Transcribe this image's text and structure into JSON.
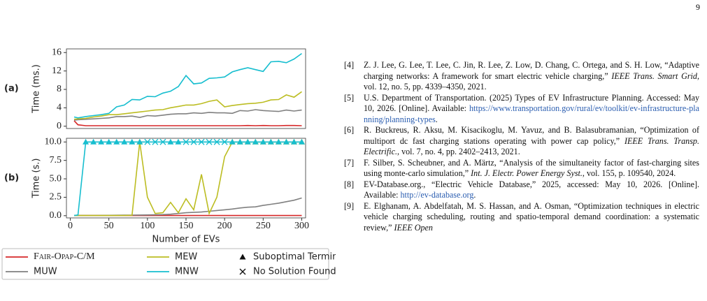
{
  "page_number": "9",
  "chart_data": [
    {
      "type": "line",
      "panel_label": "(a)",
      "ylabel": "Time (ms.)",
      "x": [
        5,
        10,
        20,
        30,
        40,
        50,
        60,
        70,
        80,
        90,
        100,
        110,
        120,
        130,
        140,
        150,
        160,
        170,
        180,
        190,
        200,
        210,
        220,
        230,
        240,
        250,
        260,
        270,
        280,
        290,
        300
      ],
      "xlim": [
        -5,
        305
      ],
      "ylim": [
        -0.5,
        16.8
      ],
      "yticks": [
        0,
        4,
        8,
        12,
        16
      ],
      "series": [
        {
          "name": "Fair-Opap-C/M",
          "color": "#d62728",
          "values": [
            1.2,
            0.3,
            0.1,
            0.1,
            0.1,
            0.1,
            0.1,
            0.1,
            0.1,
            0.1,
            0.1,
            0.1,
            0.1,
            0.1,
            0.1,
            0.1,
            0.1,
            0.1,
            0.1,
            0.1,
            0.1,
            0.1,
            0.1,
            0.15,
            0.1,
            0.15,
            0.1,
            0.1,
            0.15,
            0.15,
            0.1
          ]
        },
        {
          "name": "MUW",
          "color": "#808080",
          "values": [
            1.3,
            1.4,
            1.5,
            1.6,
            1.7,
            1.8,
            2.1,
            2.1,
            2.2,
            1.9,
            2.3,
            2.2,
            2.4,
            2.6,
            2.7,
            2.7,
            2.9,
            2.8,
            3.0,
            2.9,
            2.9,
            2.8,
            3.4,
            3.3,
            3.6,
            3.4,
            3.3,
            3.2,
            3.5,
            3.3,
            3.5
          ]
        },
        {
          "name": "MEW",
          "color": "#bcbd22",
          "values": [
            1.5,
            1.6,
            1.7,
            2.0,
            2.2,
            2.5,
            2.5,
            2.7,
            2.9,
            3.1,
            3.3,
            3.5,
            3.6,
            4.0,
            4.3,
            4.6,
            4.6,
            4.9,
            5.4,
            5.7,
            4.2,
            4.5,
            4.7,
            4.9,
            5.0,
            5.2,
            5.7,
            5.8,
            6.8,
            6.3,
            7.5
          ]
        },
        {
          "name": "MNW",
          "color": "#17becf",
          "values": [
            2.0,
            1.8,
            2.1,
            2.3,
            2.5,
            2.8,
            4.2,
            4.6,
            5.8,
            5.7,
            6.5,
            6.4,
            7.2,
            7.6,
            8.6,
            11.0,
            9.2,
            9.4,
            10.4,
            10.5,
            10.7,
            11.8,
            12.3,
            12.7,
            12.3,
            11.9,
            14.0,
            14.1,
            13.8,
            14.6,
            15.8
          ]
        }
      ]
    },
    {
      "type": "line",
      "panel_label": "(b)",
      "ylabel": "Time (s.)",
      "xlabel": "Number of EVs",
      "x": [
        5,
        10,
        20,
        30,
        40,
        50,
        60,
        70,
        80,
        90,
        100,
        110,
        120,
        130,
        140,
        150,
        160,
        170,
        180,
        190,
        200,
        210,
        220,
        230,
        240,
        250,
        260,
        270,
        280,
        290,
        300
      ],
      "xlim": [
        -5,
        305
      ],
      "xticks": [
        0,
        50,
        100,
        150,
        200,
        250,
        300
      ],
      "ylim": [
        -0.3,
        10.5
      ],
      "yticks": [
        {
          "value": 0,
          "label": "0.0"
        },
        2.5,
        {
          "value": 5,
          "label": "5.0"
        },
        7.5,
        {
          "value": 10,
          "label": "10.0"
        }
      ],
      "markers": [
        {
          "symbol": "triangle",
          "label": "Suboptimal Termination"
        },
        {
          "symbol": "cross",
          "label": "No Solution Found"
        }
      ],
      "series": [
        {
          "color": "#d62728",
          "values": [
            0.02,
            0.02,
            0.02,
            0.02,
            0.02,
            0.02,
            0.02,
            0.02,
            0.02,
            0.02,
            0.02,
            0.02,
            0.02,
            0.02,
            0.02,
            0.02,
            0.02,
            0.02,
            0.02,
            0.02,
            0.02,
            0.02,
            0.02,
            0.02,
            0.02,
            0.02,
            0.02,
            0.02,
            0.02,
            0.02,
            0.02
          ]
        },
        {
          "color": "#808080",
          "values": [
            0.02,
            0.02,
            0.03,
            0.03,
            0.04,
            0.05,
            0.06,
            0.07,
            0.08,
            0.09,
            0.1,
            0.12,
            0.15,
            0.2,
            0.3,
            0.4,
            0.45,
            0.5,
            0.6,
            0.7,
            0.8,
            0.9,
            1.05,
            1.15,
            1.2,
            1.4,
            1.55,
            1.7,
            1.9,
            2.1,
            2.4
          ],
          "status": [
            null,
            null,
            null,
            null,
            null,
            null,
            null,
            null,
            null,
            null,
            null,
            null,
            null,
            null,
            null,
            null,
            null,
            null,
            null,
            null,
            null,
            null,
            null,
            null,
            null,
            null,
            null,
            null,
            null,
            null,
            null
          ]
        },
        {
          "color": "#bcbd22",
          "values": [
            0.02,
            0.02,
            0.02,
            0.02,
            0.02,
            0.02,
            0.02,
            0.02,
            0.05,
            10,
            2.5,
            0.3,
            0.4,
            1.8,
            0.4,
            2.3,
            0.8,
            5.6,
            0.3,
            2.5,
            8.0,
            10,
            10,
            10,
            10,
            10,
            10,
            10,
            10,
            10,
            10
          ],
          "status": [
            null,
            null,
            null,
            null,
            null,
            null,
            null,
            null,
            null,
            "triangle",
            null,
            null,
            null,
            null,
            null,
            null,
            null,
            null,
            null,
            null,
            null,
            "triangle",
            "triangle",
            "triangle",
            "triangle",
            "triangle",
            "triangle",
            "triangle",
            "triangle",
            "triangle",
            "triangle"
          ]
        },
        {
          "color": "#17becf",
          "values": [
            0.02,
            0.1,
            10,
            10,
            10,
            10,
            10,
            10,
            10,
            10,
            10,
            10,
            10,
            10,
            10,
            10,
            10,
            10,
            10,
            10,
            10,
            10,
            10,
            10,
            10,
            10,
            10,
            10,
            10,
            10,
            10
          ],
          "status": [
            null,
            null,
            "triangle",
            "triangle",
            "triangle",
            "triangle",
            "triangle",
            "triangle",
            "triangle",
            "triangle",
            "cross",
            "cross",
            "cross",
            "triangle",
            "triangle",
            "cross",
            "cross",
            "cross",
            "cross",
            "cross",
            "cross",
            "triangle",
            "triangle",
            "triangle",
            "triangle",
            "triangle",
            "triangle",
            "triangle",
            "triangle",
            "triangle",
            "triangle"
          ]
        }
      ]
    }
  ],
  "references": [
    {
      "label": "[4]",
      "parts": [
        {
          "t": "Z. J. Lee, G. Lee, T. Lee, C. Jin, R. Lee, Z. Low, D. Chang, C. Ortega, and S. H. Low, “Adaptive charging networks: A framework for smart electric vehicle charging,” "
        },
        {
          "t": "IEEE Trans. Smart Grid",
          "s": "i"
        },
        {
          "t": ", vol. 12, no. 5, pp. 4339–4350, 2021."
        }
      ]
    },
    {
      "label": "[5]",
      "parts": [
        {
          "t": "U.S. Department of Transportation. (2025) Types of EV Infrastructure Planning. Accessed: May 10, 2026. [Online]. Available: "
        },
        {
          "t": "https://www.transportation.gov/rural/ev/toolkit/ev-infrastructure-planning/planning-types",
          "s": "a"
        },
        {
          "t": "."
        }
      ]
    },
    {
      "label": "[6]",
      "parts": [
        {
          "t": "R. Buckreus, R. Aksu, M. Kisacikoglu, M. Yavuz, and B. Balasubramanian, “Optimization of multiport dc fast charging stations operating with power cap policy,” "
        },
        {
          "t": "IEEE Trans. Transp. Electrific.",
          "s": "i"
        },
        {
          "t": ", vol. 7, no. 4, pp. 2402–2413, 2021."
        }
      ]
    },
    {
      "label": "[7]",
      "parts": [
        {
          "t": "F. Silber, S. Scheubner, and A. Märtz, “Analysis of the simultaneity factor of fast-charging sites using monte-carlo simulation,” "
        },
        {
          "t": "Int. J. Electr. Power Energy Syst.",
          "s": "i"
        },
        {
          "t": ", vol. 155, p. 109540, 2024."
        }
      ]
    },
    {
      "label": "[8]",
      "parts": [
        {
          "t": "EV-Database.org., “Electric Vehicle Database,” 2025, accessed: May 10, 2026. [Online]. Available: "
        },
        {
          "t": "http://ev-database.org",
          "s": "a"
        },
        {
          "t": "."
        }
      ]
    },
    {
      "label": "[9]",
      "parts": [
        {
          "t": "E. Elghanam, A. Abdelfatah, M. S. Hassan, and A. Osman, “Optimization techniques in electric vehicle charging scheduling, routing and spatio-temporal demand coordination: a systematic review,” "
        },
        {
          "t": "IEEE Open",
          "s": "i"
        }
      ]
    }
  ]
}
